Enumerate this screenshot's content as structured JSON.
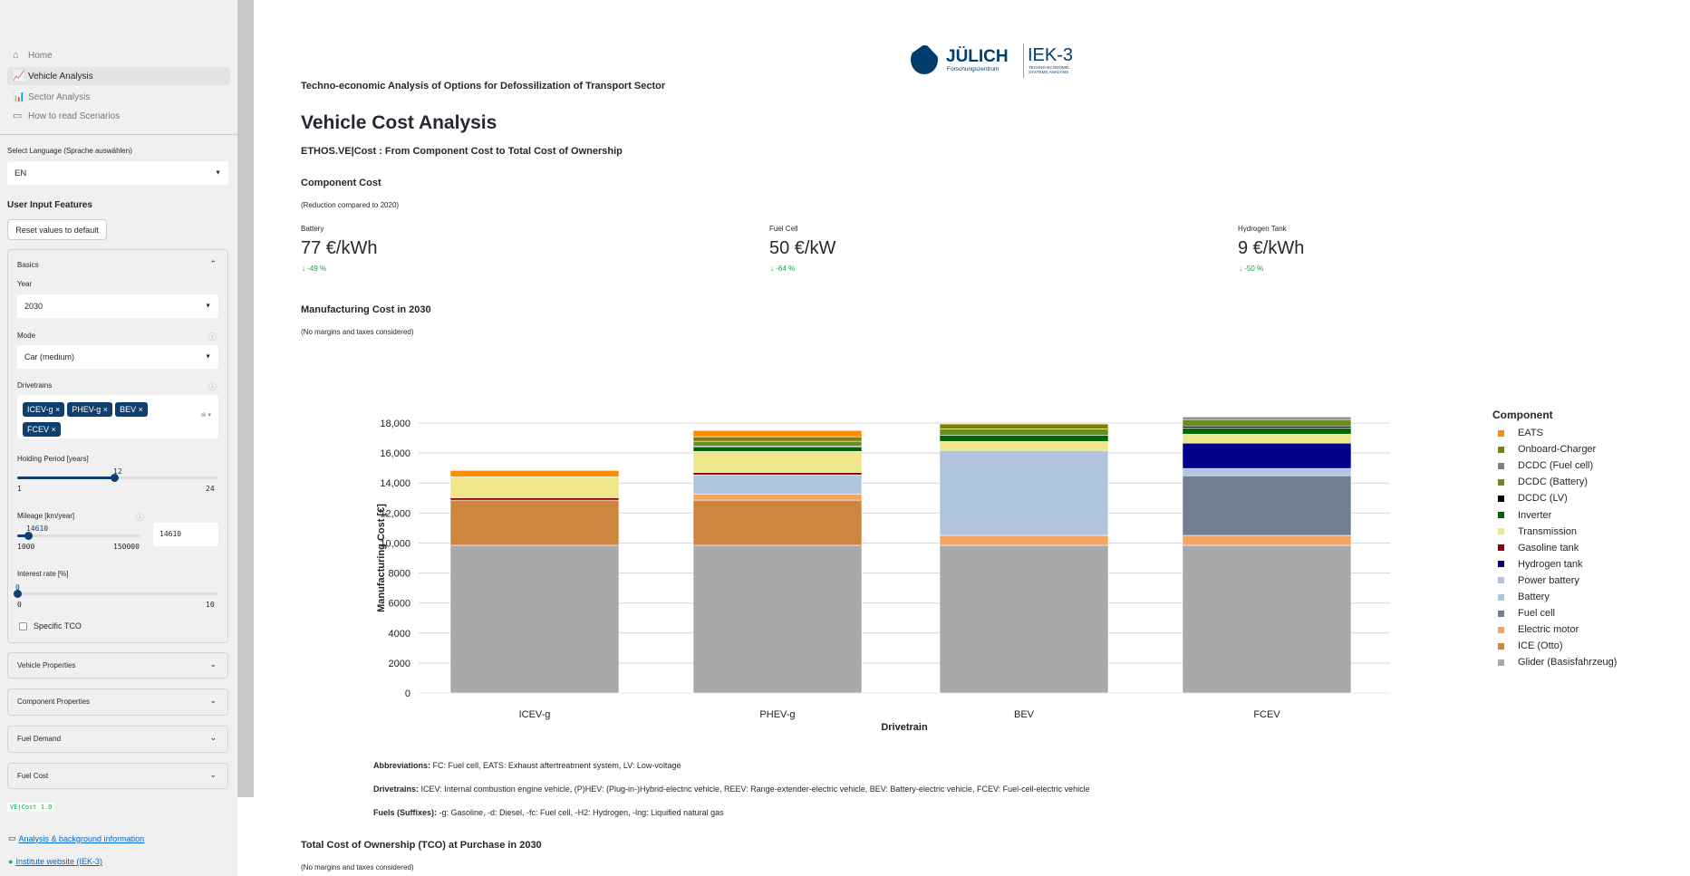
{
  "sidebar": {
    "nav": [
      {
        "label": "Home",
        "icon": "house-icon"
      },
      {
        "label": "Vehicle Analysis",
        "icon": "chart-line-icon",
        "active": true
      },
      {
        "label": "Sector Analysis",
        "icon": "bar-chart-icon"
      },
      {
        "label": "How to read Scenarios",
        "icon": "book-icon"
      }
    ],
    "language_label": "Select Language (Sprache auswählen)",
    "language_value": "EN",
    "user_input_title": "User Input Features",
    "reset_label": "Reset values to default",
    "basics": {
      "title": "Basics",
      "year_label": "Year",
      "year_value": "2030",
      "mode_label": "Mode",
      "mode_value": "Car (medium)",
      "drivetrains_label": "Drivetrains",
      "drivetrains": [
        "ICEV-g",
        "PHEV-g",
        "BEV",
        "FCEV"
      ],
      "holding_label": "Holding Period [years]",
      "holding_value": "12",
      "holding_min": "1",
      "holding_max": "24",
      "holding_fraction": 0.478,
      "mileage_label": "Mileage [km/year]",
      "mileage_value": "14610",
      "mileage_min": "1000",
      "mileage_max": "150000",
      "mileage_fraction": 0.091,
      "interest_label": "Interest rate [%]",
      "interest_value": "0",
      "interest_min": "0",
      "interest_max": "10",
      "interest_fraction": 0,
      "specific_tco_label": "Specific TCO",
      "specific_tco_checked": false
    },
    "expanders": [
      "Vehicle Properties",
      "Component Properties",
      "Fuel Demand",
      "Fuel Cost"
    ],
    "version": "VE|Cost 1.0",
    "links": [
      "Analysis & background information",
      "Institute website (IEK-3)"
    ]
  },
  "logo": {
    "name": "JÜLICH",
    "sub": "Forschungszentrum",
    "inst": "IEK-3",
    "inst_sub": "TECHNO-ECONOMIC SYSTEMS ANALYSIS"
  },
  "header": {
    "subtitle": "Techno-economic Analysis of Options for Defossilization of Transport Sector",
    "title": "Vehicle Cost Analysis",
    "tagline": "ETHOS.VE|Cost : From Component Cost to Total Cost of Ownership"
  },
  "component_cost": {
    "title": "Component Cost",
    "note": "(Reduction compared to 2020)",
    "metrics": [
      {
        "label": "Battery",
        "value": "77 €/kWh",
        "delta": "-49 %"
      },
      {
        "label": "Fuel Cell",
        "value": "50 €/kW",
        "delta": "-64 %"
      },
      {
        "label": "Hydrogen Tank",
        "value": "9 €/kWh",
        "delta": "-50 %"
      }
    ]
  },
  "manufacturing": {
    "title": "Manufacturing Cost in 2030",
    "note": "(No margins and taxes considered)"
  },
  "chart_data": {
    "type": "bar",
    "stacked": true,
    "xlabel": "Drivetrain",
    "ylabel": "Manufacturing Cost [€]",
    "ylim": [
      0,
      18500
    ],
    "yticks": [
      0,
      2000,
      4000,
      6000,
      8000,
      10000,
      12000,
      14000,
      16000,
      18000
    ],
    "ytick_labels": [
      "0",
      "2000",
      "4000",
      "6000",
      "8000",
      "10,000",
      "12,000",
      "14,000",
      "16,000",
      "18,000"
    ],
    "grid": true,
    "legend_title": "Component",
    "legend_position": "right",
    "categories": [
      "ICEV-g",
      "PHEV-g",
      "BEV",
      "FCEV"
    ],
    "series": [
      {
        "name": "Glider (Basisfahrzeug)",
        "color": "#a9a9a9",
        "values": [
          9850,
          9850,
          9850,
          9850
        ]
      },
      {
        "name": "ICE (Otto)",
        "color": "#cd853f",
        "values": [
          3010,
          3010,
          0,
          0
        ]
      },
      {
        "name": "Electric motor",
        "color": "#f4a460",
        "values": [
          0,
          400,
          660,
          660
        ]
      },
      {
        "name": "Fuel cell",
        "color": "#708090",
        "values": [
          0,
          0,
          0,
          3980
        ]
      },
      {
        "name": "Battery",
        "color": "#b0c4de",
        "values": [
          0,
          1285,
          5665,
          0
        ]
      },
      {
        "name": "Power battery",
        "color": "#b0c4de",
        "values": [
          0,
          0,
          0,
          480
        ]
      },
      {
        "name": "Hydrogen tank",
        "color": "#00008b",
        "values": [
          0,
          0,
          0,
          1690
        ]
      },
      {
        "name": "Gasoline tank",
        "color": "#8b0000",
        "values": [
          160,
          160,
          0,
          0
        ]
      },
      {
        "name": "Transmission",
        "color": "#f0e68c",
        "values": [
          1400,
          1400,
          600,
          600
        ]
      },
      {
        "name": "Inverter",
        "color": "#006400",
        "values": [
          0,
          320,
          420,
          420
        ]
      },
      {
        "name": "DCDC (LV)",
        "color": "#000000",
        "values": [
          0,
          40,
          0,
          120
        ]
      },
      {
        "name": "DCDC (Battery)",
        "color": "#6b8e23",
        "values": [
          0,
          320,
          420,
          440
        ]
      },
      {
        "name": "DCDC (Fuel cell)",
        "color": "#808080",
        "values": [
          0,
          0,
          0,
          160
        ]
      },
      {
        "name": "Onboard-Charger",
        "color": "#808000",
        "values": [
          0,
          300,
          320,
          0
        ]
      },
      {
        "name": "EATS",
        "color": "#ff8c00",
        "values": [
          420,
          420,
          0,
          0
        ]
      }
    ]
  },
  "footnotes": [
    {
      "head": "Abbreviations:",
      "text": " FC: Fuel cell, EATS: Exhaust aftertreatment system, LV: Low-voltage"
    },
    {
      "head": "Drivetrains:",
      "text": " ICEV: Internal combustion engine vehicle, (P)HEV: (Plug-in-)Hybrid-electric vehicle, REEV: Range-extender-electric vehicle, BEV: Battery-electric vehicle, FCEV: Fuel-cell-electric vehicle"
    },
    {
      "head": "Fuels (Suffixes):",
      "text": " -g: Gasoline, -d: Diesel, -fc: Fuel cell, -H2: Hydrogen, -lng: Liquified natural gas"
    }
  ],
  "tco": {
    "title": "Total Cost of Ownership (TCO) at Purchase in 2030",
    "note": "(No margins and taxes considered)"
  }
}
